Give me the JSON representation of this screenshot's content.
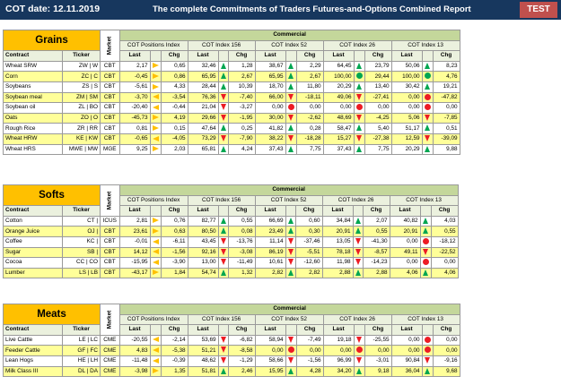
{
  "header": {
    "date": "COT date: 12.11.2019",
    "title": "The complete Commitments of Traders Futures-and-Options Combined Report",
    "test": "TEST"
  },
  "labels": {
    "contract": "Contract",
    "ticker": "Ticker",
    "market": "Market",
    "commercial": "Commercial",
    "last": "Last",
    "chg": "Chg",
    "groups": [
      "COT Positions Index",
      "COT Index 156",
      "COT Index 52",
      "COT Index 26",
      "COT Index 13"
    ]
  },
  "icon_legend": {
    "gu": "green-up-arrow",
    "rd": "red-down-arrow",
    "gc": "green-circle",
    "rc": "red-circle",
    "yr": "yellow-right-arrow",
    "yl": "yellow-left-arrow",
    "ne": "yellow-diagonal-up-arrow",
    "se": "orange-diagonal-down-arrow"
  },
  "sections": [
    {
      "name": "Grains",
      "rows": [
        {
          "contract": "Wheat SRW",
          "ticker": "ZW | W",
          "market": "CBT",
          "cells": [
            [
              "2,17",
              "yr",
              "0,65"
            ],
            [
              "32,46",
              "gu",
              "1,28"
            ],
            [
              "38,67",
              "gu",
              "2,29"
            ],
            [
              "64,45",
              "gu",
              "23,79"
            ],
            [
              "50,06",
              "gu",
              "8,23"
            ]
          ]
        },
        {
          "contract": "Corn",
          "ticker": "ZC | C",
          "market": "CBT",
          "cells": [
            [
              "-0,45",
              "yr",
              "0,86"
            ],
            [
              "65,95",
              "gu",
              "2,67"
            ],
            [
              "65,95",
              "gu",
              "2,67"
            ],
            [
              "100,00",
              "gc",
              "29,44"
            ],
            [
              "100,00",
              "gc",
              "4,76"
            ]
          ]
        },
        {
          "contract": "Soybeans",
          "ticker": "ZS | S",
          "market": "CBT",
          "cells": [
            [
              "-5,61",
              "yr",
              "4,33"
            ],
            [
              "28,44",
              "gu",
              "10,39"
            ],
            [
              "18,70",
              "gu",
              "11,80"
            ],
            [
              "20,29",
              "gu",
              "13,40"
            ],
            [
              "30,42",
              "gu",
              "19,21"
            ]
          ]
        },
        {
          "contract": "Soybean meal",
          "ticker": "ZM | SM",
          "market": "CBT",
          "cells": [
            [
              "-3,70",
              "yl",
              "-3,54"
            ],
            [
              "76,36",
              "rd",
              "-7,40"
            ],
            [
              "66,00",
              "rd",
              "-18,11"
            ],
            [
              "49,06",
              "rd",
              "-27,41"
            ],
            [
              "0,00",
              "rc",
              "-47,82"
            ]
          ]
        },
        {
          "contract": "Soybean oil",
          "ticker": "ZL | BO",
          "market": "CBT",
          "cells": [
            [
              "-20,40",
              "yl",
              "-0,44"
            ],
            [
              "21,04",
              "rd",
              "-3,27"
            ],
            [
              "0,00",
              "rc",
              "0,00"
            ],
            [
              "0,00",
              "rc",
              "0,00"
            ],
            [
              "0,00",
              "rc",
              "0,00"
            ]
          ]
        },
        {
          "contract": "Oats",
          "ticker": "ZO | O",
          "market": "CBT",
          "cells": [
            [
              "-45,73",
              "yr",
              "4,19"
            ],
            [
              "29,66",
              "rd",
              "-1,95"
            ],
            [
              "30,00",
              "rd",
              "-2,62"
            ],
            [
              "48,69",
              "rd",
              "-4,25"
            ],
            [
              "5,06",
              "rd",
              "-7,85"
            ]
          ]
        },
        {
          "contract": "Rough Rice",
          "ticker": "ZR | RR",
          "market": "CBT",
          "cells": [
            [
              "0,81",
              "yr",
              "0,15"
            ],
            [
              "47,64",
              "gu",
              "0,25"
            ],
            [
              "41,82",
              "gu",
              "0,28"
            ],
            [
              "58,47",
              "gu",
              "5,40"
            ],
            [
              "51,17",
              "gu",
              "0,51"
            ]
          ]
        },
        {
          "contract": "Wheat HRW",
          "ticker": "KE | KW",
          "market": "CBT",
          "cells": [
            [
              "-0,65",
              "yl",
              "-4,05"
            ],
            [
              "73,29",
              "rd",
              "-7,90"
            ],
            [
              "38,22",
              "rd",
              "-18,28"
            ],
            [
              "15,27",
              "rd",
              "-27,38"
            ],
            [
              "12,59",
              "rd",
              "-39,09"
            ]
          ]
        },
        {
          "contract": "Wheat HRS",
          "ticker": "MWE | MW",
          "market": "MGE",
          "cells": [
            [
              "9,25",
              "yr",
              "2,03"
            ],
            [
              "65,81",
              "gu",
              "4,24"
            ],
            [
              "37,43",
              "gu",
              "7,75"
            ],
            [
              "37,43",
              "gu",
              "7,75"
            ],
            [
              "20,29",
              "gu",
              "9,88"
            ]
          ]
        }
      ]
    },
    {
      "name": "Softs",
      "rows": [
        {
          "contract": "Cotton",
          "ticker": "CT |",
          "market": "ICUS",
          "cells": [
            [
              "2,81",
              "yr",
              "0,76"
            ],
            [
              "82,77",
              "gu",
              "0,55"
            ],
            [
              "66,69",
              "gu",
              "0,60"
            ],
            [
              "34,84",
              "gu",
              "2,07"
            ],
            [
              "40,82",
              "gu",
              "4,03"
            ]
          ]
        },
        {
          "contract": "Orange Juice",
          "ticker": "OJ |",
          "market": "CBT",
          "cells": [
            [
              "23,61",
              "yr",
              "0,63"
            ],
            [
              "80,50",
              "gu",
              "0,08"
            ],
            [
              "23,49",
              "gu",
              "0,30"
            ],
            [
              "20,91",
              "gu",
              "0,55"
            ],
            [
              "20,91",
              "gu",
              "0,55"
            ]
          ]
        },
        {
          "contract": "Coffee",
          "ticker": "KC |",
          "market": "CBT",
          "cells": [
            [
              "-0,01",
              "yl",
              "-6,11"
            ],
            [
              "43,45",
              "rd",
              "-13,76"
            ],
            [
              "11,14",
              "rd",
              "-37,46"
            ],
            [
              "13,05",
              "rd",
              "-41,30"
            ],
            [
              "0,00",
              "rc",
              "-18,12"
            ]
          ]
        },
        {
          "contract": "Sugar",
          "ticker": "SB |",
          "market": "CBT",
          "cells": [
            [
              "14,12",
              "yl",
              "-1,56"
            ],
            [
              "92,16",
              "rd",
              "-3,08"
            ],
            [
              "86,19",
              "rd",
              "-5,51"
            ],
            [
              "78,18",
              "rd",
              "-8,57"
            ],
            [
              "49,11",
              "rd",
              "-22,52"
            ]
          ]
        },
        {
          "contract": "Cocoa",
          "ticker": "CC | CO",
          "market": "CBT",
          "cells": [
            [
              "-15,95",
              "yl",
              "-3,90"
            ],
            [
              "13,00",
              "rd",
              "-11,49"
            ],
            [
              "10,61",
              "rd",
              "-12,60"
            ],
            [
              "11,98",
              "rd",
              "-14,23"
            ],
            [
              "0,00",
              "rc",
              "0,00"
            ]
          ]
        },
        {
          "contract": "Lumber",
          "ticker": "LS | LB",
          "market": "CBT",
          "cells": [
            [
              "-43,17",
              "yr",
              "1,84"
            ],
            [
              "54,74",
              "gu",
              "1,32"
            ],
            [
              "2,82",
              "gu",
              "2,82"
            ],
            [
              "2,88",
              "gu",
              "2,88"
            ],
            [
              "4,06",
              "gu",
              "4,06"
            ]
          ]
        }
      ]
    },
    {
      "name": "Meats",
      "rows": [
        {
          "contract": "Live Cattle",
          "ticker": "LE | LC",
          "market": "CME",
          "cells": [
            [
              "-20,55",
              "yl",
              "-2,14"
            ],
            [
              "53,69",
              "rd",
              "-6,82"
            ],
            [
              "58,94",
              "rd",
              "-7,49"
            ],
            [
              "19,18",
              "rd",
              "-25,55"
            ],
            [
              "0,00",
              "rc",
              "0,00"
            ]
          ]
        },
        {
          "contract": "Feeder Cattle",
          "ticker": "GF | FC",
          "market": "CME",
          "cells": [
            [
              "4,83",
              "yl",
              "-5,38"
            ],
            [
              "51,21",
              "rd",
              "-8,58"
            ],
            [
              "0,00",
              "rc",
              "0,00"
            ],
            [
              "0,00",
              "rc",
              "0,00"
            ],
            [
              "0,00",
              "rc",
              "0,00"
            ]
          ]
        },
        {
          "contract": "Lean Hogs",
          "ticker": "HE | LH",
          "market": "CME",
          "cells": [
            [
              "-11,48",
              "yl",
              "-0,39"
            ],
            [
              "48,62",
              "rd",
              "-1,29"
            ],
            [
              "58,66",
              "rd",
              "-1,56"
            ],
            [
              "96,99",
              "rd",
              "-3,01"
            ],
            [
              "90,84",
              "rd",
              "-9,16"
            ]
          ]
        },
        {
          "contract": "Milk Class III",
          "ticker": "DL | DA",
          "market": "CME",
          "cells": [
            [
              "-3,98",
              "yr",
              "1,35"
            ],
            [
              "51,81",
              "gu",
              "2,46"
            ],
            [
              "15,95",
              "gu",
              "4,28"
            ],
            [
              "34,20",
              "gu",
              "9,18"
            ],
            [
              "36,04",
              "gu",
              "9,68"
            ]
          ]
        }
      ]
    }
  ]
}
